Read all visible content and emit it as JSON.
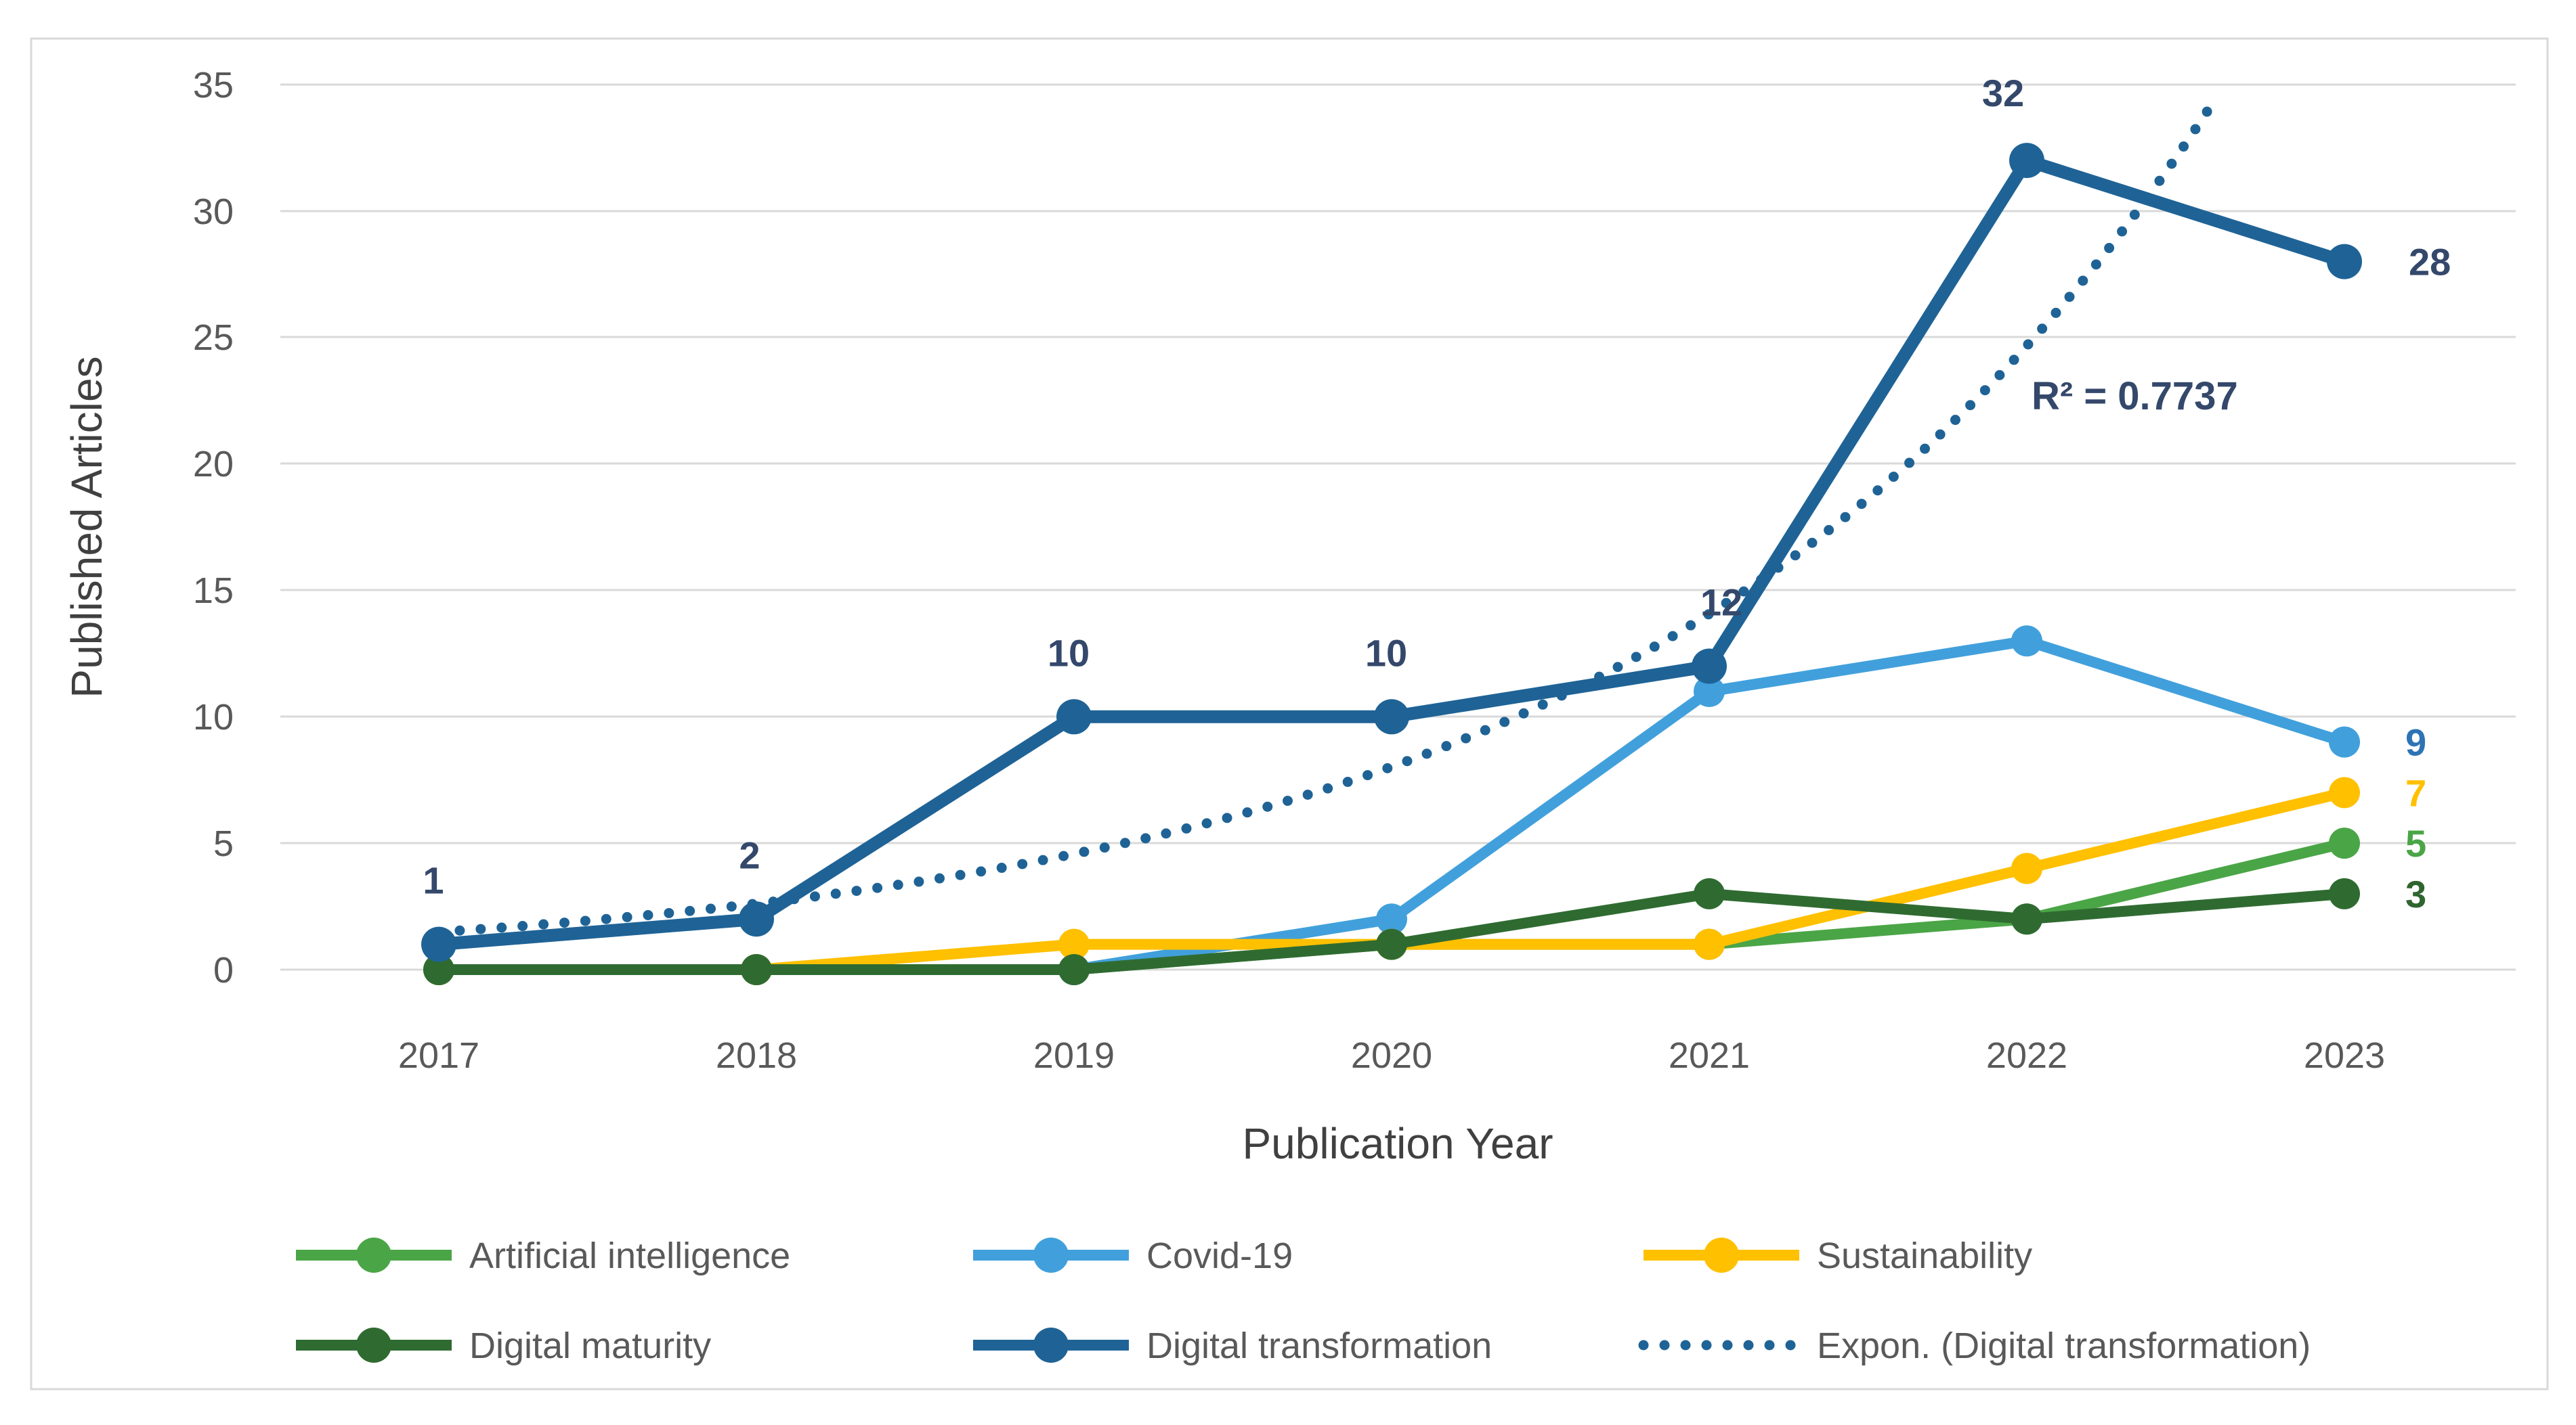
{
  "figure": {
    "background_color": "#FFFFFF",
    "border_color": "#D9D9D9"
  },
  "y_axis": {
    "title": "Published Articles",
    "ticks": [
      "0",
      "5",
      "10",
      "15",
      "20",
      "25",
      "30",
      "35"
    ],
    "tick_color": "#595959",
    "title_color": "#404040",
    "range": [
      0,
      35
    ]
  },
  "x_axis": {
    "title": "Publication Year",
    "categories": [
      "2017",
      "2018",
      "2019",
      "2020",
      "2021",
      "2022",
      "2023"
    ],
    "tick_color": "#595959",
    "title_color": "#404040"
  },
  "legend": {
    "position": "bottom",
    "items": [
      {
        "label": "Artificial intelligence",
        "color": "#4AA546",
        "style": "line-marker"
      },
      {
        "label": "Covid-19",
        "color": "#41A0DC",
        "style": "line-marker"
      },
      {
        "label": "Sustainability",
        "color": "#FFC000",
        "style": "line-marker"
      },
      {
        "label": "Digital maturity",
        "color": "#2F6B31",
        "style": "line-marker"
      },
      {
        "label": "Digital transformation",
        "color": "#1F6396",
        "style": "line-marker"
      },
      {
        "label": "Expon. (Digital transformation)",
        "color": "#1F6396",
        "style": "dotted"
      }
    ]
  },
  "chart_data": {
    "type": "line",
    "title": "",
    "xlabel": "Publication Year",
    "ylabel": "Published Articles",
    "ylim": [
      0,
      35
    ],
    "grid": "horizontal",
    "categories": [
      "2017",
      "2018",
      "2019",
      "2020",
      "2021",
      "2022",
      "2023"
    ],
    "series": [
      {
        "name": "Artificial intelligence",
        "color": "#4AA546",
        "values": [
          0,
          0,
          0,
          1,
          1,
          2,
          5
        ],
        "line_width": 16,
        "marker_radius": 23,
        "label_color": "#4AA546",
        "point_labels": [
          {
            "index": 6,
            "text": "5",
            "dx": 90,
            "dy": 20,
            "anchor": "start"
          }
        ]
      },
      {
        "name": "Covid-19",
        "color": "#41A0DC",
        "values": [
          0,
          0,
          0,
          2,
          11,
          13,
          9
        ],
        "line_width": 16,
        "marker_radius": 23,
        "label_color": "#2E74B5",
        "point_labels": [
          {
            "index": 6,
            "text": "9",
            "dx": 90,
            "dy": 20,
            "anchor": "start"
          }
        ]
      },
      {
        "name": "Sustainability",
        "color": "#FFC000",
        "values": [
          0,
          0,
          1,
          1,
          1,
          4,
          7
        ],
        "line_width": 16,
        "marker_radius": 23,
        "label_color": "#FFC000",
        "point_labels": [
          {
            "index": 6,
            "text": "7",
            "dx": 90,
            "dy": 20,
            "anchor": "start"
          }
        ]
      },
      {
        "name": "Digital maturity",
        "color": "#2F6B31",
        "values": [
          0,
          0,
          0,
          1,
          3,
          2,
          3
        ],
        "line_width": 16,
        "marker_radius": 23,
        "label_color": "#2F652F",
        "point_labels": [
          {
            "index": 6,
            "text": "3",
            "dx": 90,
            "dy": 20,
            "anchor": "start"
          }
        ]
      },
      {
        "name": "Digital transformation",
        "color": "#1F6396",
        "values": [
          1,
          2,
          10,
          10,
          12,
          32,
          28
        ],
        "line_width": 19,
        "marker_radius": 26,
        "label_color": "#34486B",
        "point_labels": [
          {
            "index": 0,
            "text": "1",
            "dx": -8,
            "dy": -75,
            "anchor": "middle"
          },
          {
            "index": 1,
            "text": "2",
            "dx": -10,
            "dy": -75,
            "anchor": "middle"
          },
          {
            "index": 2,
            "text": "10",
            "dx": -8,
            "dy": -75,
            "anchor": "middle"
          },
          {
            "index": 3,
            "text": "10",
            "dx": -8,
            "dy": -75,
            "anchor": "middle"
          },
          {
            "index": 4,
            "text": "12",
            "dx": 18,
            "dy": -75,
            "anchor": "middle"
          },
          {
            "index": 5,
            "text": "32",
            "dx": -35,
            "dy": -80,
            "anchor": "middle"
          },
          {
            "index": 6,
            "text": "28",
            "dx": 95,
            "dy": 20,
            "anchor": "start"
          }
        ]
      }
    ],
    "trendline": {
      "name": "Expon. (Digital transformation)",
      "target_series": "Digital transformation",
      "type": "exponential",
      "color": "#1F6396",
      "fit_a": 0.8487,
      "fit_b": 0.5616,
      "r2_label": "R² = 0.7737",
      "r2_value": 0.7737
    }
  }
}
